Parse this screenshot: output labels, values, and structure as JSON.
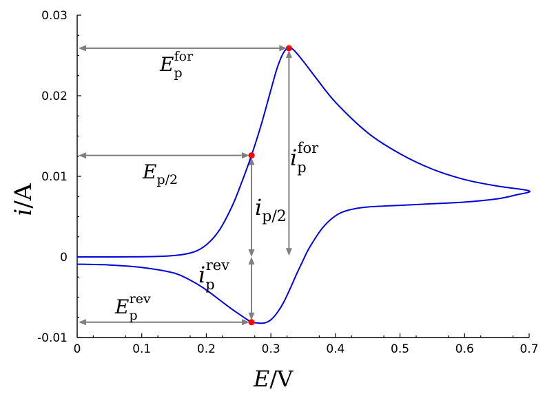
{
  "chart_data": {
    "type": "line",
    "title": "",
    "xlabel": {
      "var": "E",
      "unit": "V"
    },
    "ylabel": {
      "var": "i",
      "unit": "A"
    },
    "xlim": [
      0,
      0.7
    ],
    "ylim": [
      -0.01,
      0.03
    ],
    "xticks": [
      0,
      0.1,
      0.2,
      0.3,
      0.4,
      0.5,
      0.6,
      0.7
    ],
    "xtick_labels": [
      "0",
      "0.1",
      "0.2",
      "0.3",
      "0.4",
      "0.5",
      "0.6",
      "0.7"
    ],
    "yticks": [
      -0.01,
      0,
      0.01,
      0.02,
      0.03
    ],
    "ytick_labels": [
      "-0.01",
      "0",
      "0.01",
      "0.02",
      "0.03"
    ],
    "grid": false,
    "series": [
      {
        "color": "#0000dd",
        "points": [
          [
            0.0,
            0.0
          ],
          [
            0.1,
            2e-05
          ],
          [
            0.15,
            0.00017
          ],
          [
            0.18,
            0.0006
          ],
          [
            0.2,
            0.0015
          ],
          [
            0.22,
            0.0033
          ],
          [
            0.24,
            0.0063
          ],
          [
            0.255,
            0.0093
          ],
          [
            0.27,
            0.0126
          ],
          [
            0.285,
            0.0164
          ],
          [
            0.3,
            0.0207
          ],
          [
            0.31,
            0.0235
          ],
          [
            0.32,
            0.0254
          ],
          [
            0.328,
            0.0259
          ],
          [
            0.335,
            0.0257
          ],
          [
            0.35,
            0.0243
          ],
          [
            0.37,
            0.0222
          ],
          [
            0.4,
            0.0192
          ],
          [
            0.45,
            0.0154
          ],
          [
            0.5,
            0.0128
          ],
          [
            0.55,
            0.0109
          ],
          [
            0.6,
            0.0096
          ],
          [
            0.65,
            0.0088
          ],
          [
            0.7,
            0.0082
          ],
          [
            0.68,
            0.0077
          ],
          [
            0.65,
            0.0072
          ],
          [
            0.6,
            0.0068
          ],
          [
            0.55,
            0.0066
          ],
          [
            0.5,
            0.0064
          ],
          [
            0.45,
            0.0062
          ],
          [
            0.42,
            0.0058
          ],
          [
            0.4,
            0.0051
          ],
          [
            0.38,
            0.0036
          ],
          [
            0.36,
            0.0012
          ],
          [
            0.35,
            -0.0004
          ],
          [
            0.34,
            -0.0021
          ],
          [
            0.33,
            -0.0039
          ],
          [
            0.32,
            -0.0056
          ],
          [
            0.31,
            -0.0069
          ],
          [
            0.3,
            -0.0078
          ],
          [
            0.29,
            -0.0082
          ],
          [
            0.28,
            -0.0082
          ],
          [
            0.27,
            -0.0081
          ],
          [
            0.26,
            -0.0076
          ],
          [
            0.24,
            -0.0065
          ],
          [
            0.22,
            -0.0053
          ],
          [
            0.2,
            -0.0041
          ],
          [
            0.18,
            -0.0031
          ],
          [
            0.15,
            -0.002
          ],
          [
            0.1,
            -0.0013
          ],
          [
            0.05,
            -0.001
          ],
          [
            0.0,
            -0.0009
          ]
        ]
      }
    ],
    "peaks": [
      {
        "name": "forward-peak",
        "x": 0.328,
        "y": 0.0259
      },
      {
        "name": "half-peak",
        "x": 0.27,
        "y": 0.0126
      },
      {
        "name": "reverse-peak",
        "x": 0.27,
        "y": -0.0081
      }
    ],
    "annotations": [
      {
        "base": "E",
        "sub": "p",
        "sup": "for"
      },
      {
        "base": "E",
        "sub": "p/2",
        "sup": ""
      },
      {
        "base": "E",
        "sub": "p",
        "sup": "rev"
      },
      {
        "base": "i",
        "sub": "p",
        "sup": "for"
      },
      {
        "base": "i",
        "sub": "p/2",
        "sup": ""
      },
      {
        "base": "i",
        "sub": "p",
        "sup": "rev"
      }
    ]
  }
}
